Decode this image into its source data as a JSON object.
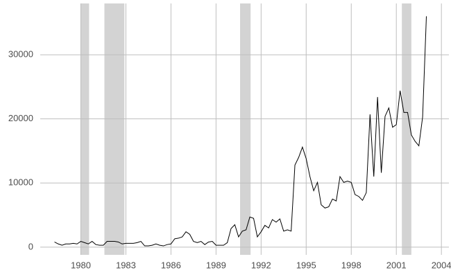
{
  "chart_data": {
    "type": "line",
    "x": [
      1978.25,
      1978.5,
      1978.75,
      1979,
      1979.25,
      1979.5,
      1979.75,
      1980,
      1980.25,
      1980.5,
      1980.75,
      1981,
      1981.25,
      1981.5,
      1981.75,
      1982,
      1982.25,
      1982.5,
      1982.75,
      1983,
      1983.25,
      1983.5,
      1983.75,
      1984,
      1984.25,
      1984.5,
      1984.75,
      1985,
      1985.25,
      1985.5,
      1985.75,
      1986,
      1986.25,
      1986.5,
      1986.75,
      1987,
      1987.25,
      1987.5,
      1987.75,
      1988,
      1988.25,
      1988.5,
      1988.75,
      1989,
      1989.25,
      1989.5,
      1989.75,
      1990,
      1990.25,
      1990.5,
      1990.75,
      1991,
      1991.25,
      1991.5,
      1991.75,
      1992,
      1992.25,
      1992.5,
      1992.75,
      1993,
      1993.25,
      1993.5,
      1993.75,
      1994,
      1994.25,
      1994.5,
      1994.75,
      1995,
      1995.25,
      1995.5,
      1995.75,
      1996,
      1996.25,
      1996.5,
      1996.75,
      1997,
      1997.25,
      1997.5,
      1997.75,
      1998,
      1998.25,
      1998.5,
      1998.75,
      1999,
      1999.25,
      1999.5,
      1999.75,
      2000,
      2000.25,
      2000.5,
      2000.75,
      2001,
      2001.25,
      2001.5,
      2001.75,
      2002,
      2002.25,
      2002.5,
      2002.75,
      2003
    ],
    "series": [
      {
        "color": "#000000",
        "values": [
          800,
          500,
          300,
          500,
          500,
          600,
          500,
          900,
          700,
          500,
          900,
          400,
          300,
          300,
          900,
          900,
          900,
          800,
          500,
          600,
          600,
          600,
          700,
          900,
          200,
          200,
          300,
          500,
          300,
          200,
          400,
          500,
          1300,
          1400,
          1600,
          2400,
          2000,
          900,
          700,
          900,
          400,
          800,
          900,
          300,
          300,
          300,
          700,
          2900,
          3500,
          1600,
          2500,
          2700,
          4700,
          4500,
          1600,
          2400,
          3400,
          3000,
          4300,
          3900,
          4400,
          2500,
          2700,
          2500,
          12800,
          14000,
          15600,
          13800,
          11000,
          8800,
          10100,
          6600,
          6100,
          6300,
          7500,
          7200,
          11000,
          10100,
          10300,
          10100,
          8200,
          7900,
          7300,
          8500,
          20700,
          11000,
          23400,
          11600,
          20400,
          21700,
          18700,
          19100,
          24400,
          21000,
          21000,
          17500,
          16500,
          15800,
          20300,
          36000
        ]
      }
    ],
    "shaded_regions": [
      [
        1980,
        1980.55
      ],
      [
        1981.57,
        1982.9
      ],
      [
        1990.6,
        1991.3
      ],
      [
        2001.37,
        2002
      ]
    ],
    "shade_color": "#d3d3d3",
    "xlim": [
      1977.3,
      2004.5
    ],
    "xticks": [
      1980,
      1983,
      1986,
      1989,
      1992,
      1995,
      1998,
      2001,
      2004
    ],
    "ylim": [
      -1200,
      38000
    ],
    "yticks": [
      0,
      10000,
      20000,
      30000
    ],
    "grid": true
  }
}
